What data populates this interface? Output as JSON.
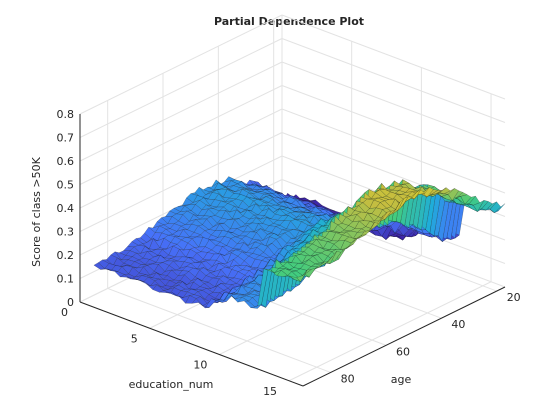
{
  "chart_data": {
    "type": "surface",
    "title": "Partial Dependence Plot",
    "xlabel": "education_num",
    "ylabel": "age",
    "zlabel": "Score of class >50K",
    "x_ticks": [
      0,
      5,
      10,
      15
    ],
    "y_ticks": [
      20,
      40,
      60,
      80
    ],
    "z_ticks": [
      0,
      0.1,
      0.2,
      0.3,
      0.4,
      0.5,
      0.6,
      0.7,
      0.8
    ],
    "x_tick_labels": [
      "0",
      "5",
      "10",
      "15"
    ],
    "y_tick_labels": [
      "20",
      "40",
      "60",
      "80"
    ],
    "z_tick_labels": [
      "0",
      "0.1",
      "0.2",
      "0.3",
      "0.4",
      "0.5",
      "0.6",
      "0.7",
      "0.8"
    ],
    "xlim": [
      0,
      16
    ],
    "ylim": [
      17,
      90
    ],
    "zlim": [
      0,
      0.8
    ],
    "grid": true,
    "colormap": "parula",
    "colors": [
      "#3e26a8",
      "#4772fa",
      "#1fadda",
      "#42cc7e",
      "#c6bd3f",
      "#f9fb15"
    ],
    "education_num_steps": [
      1,
      9,
      10,
      13,
      16
    ],
    "education_num_step_values": [
      0.04,
      0.08,
      0.12,
      0.3,
      0.34
    ],
    "age_profile": [
      [
        17,
        0.0
      ],
      [
        22,
        0.02
      ],
      [
        26,
        0.06
      ],
      [
        30,
        0.12
      ],
      [
        35,
        0.16
      ],
      [
        40,
        0.2
      ],
      [
        45,
        0.22
      ],
      [
        50,
        0.23
      ],
      [
        55,
        0.22
      ],
      [
        60,
        0.2
      ],
      [
        65,
        0.18
      ],
      [
        70,
        0.16
      ],
      [
        75,
        0.14
      ],
      [
        80,
        0.13
      ],
      [
        85,
        0.12
      ],
      [
        90,
        0.12
      ]
    ]
  }
}
